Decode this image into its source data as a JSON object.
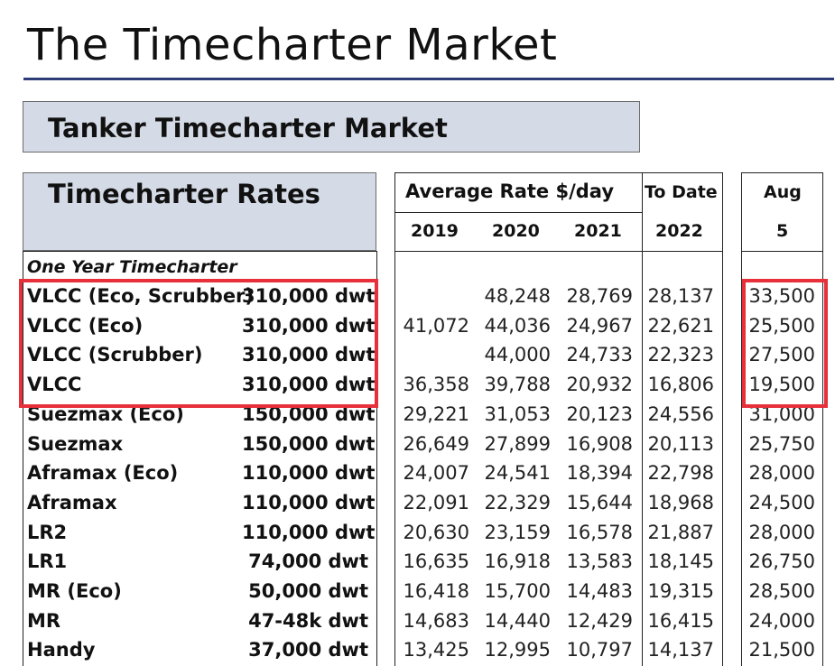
{
  "page": {
    "title": "The Timecharter Market"
  },
  "section": {
    "title": "Tanker Timecharter Market"
  },
  "table": {
    "title": "Timecharter Rates",
    "avg_header": "Average Rate $/day",
    "to_date_header": "To Date",
    "aug_header": "Aug",
    "aug_day": "5",
    "years": [
      "2019",
      "2020",
      "2021"
    ],
    "to_date_year": "2022",
    "subhead": "One Year Timecharter",
    "rows": [
      {
        "name": "VLCC (Eco, Scrubber)",
        "dwt": "310,000 dwt",
        "y2019": "",
        "y2020": "48,248",
        "y2021": "28,769",
        "to_date": "28,137",
        "aug": "33,500"
      },
      {
        "name": "VLCC (Eco)",
        "dwt": "310,000 dwt",
        "y2019": "41,072",
        "y2020": "44,036",
        "y2021": "24,967",
        "to_date": "22,621",
        "aug": "25,500"
      },
      {
        "name": "VLCC (Scrubber)",
        "dwt": "310,000 dwt",
        "y2019": "",
        "y2020": "44,000",
        "y2021": "24,733",
        "to_date": "22,323",
        "aug": "27,500"
      },
      {
        "name": "VLCC",
        "dwt": "310,000 dwt",
        "y2019": "36,358",
        "y2020": "39,788",
        "y2021": "20,932",
        "to_date": "16,806",
        "aug": "19,500"
      },
      {
        "name": "Suezmax (Eco)",
        "dwt": "150,000 dwt",
        "y2019": "29,221",
        "y2020": "31,053",
        "y2021": "20,123",
        "to_date": "24,556",
        "aug": "31,000"
      },
      {
        "name": "Suezmax",
        "dwt": "150,000 dwt",
        "y2019": "26,649",
        "y2020": "27,899",
        "y2021": "16,908",
        "to_date": "20,113",
        "aug": "25,750"
      },
      {
        "name": "Aframax (Eco)",
        "dwt": "110,000 dwt",
        "y2019": "24,007",
        "y2020": "24,541",
        "y2021": "18,394",
        "to_date": "22,798",
        "aug": "28,000"
      },
      {
        "name": "Aframax",
        "dwt": "110,000 dwt",
        "y2019": "22,091",
        "y2020": "22,329",
        "y2021": "15,644",
        "to_date": "18,968",
        "aug": "24,500"
      },
      {
        "name": "LR2",
        "dwt": "110,000 dwt",
        "y2019": "20,630",
        "y2020": "23,159",
        "y2021": "16,578",
        "to_date": "21,887",
        "aug": "28,000"
      },
      {
        "name": "LR1",
        "dwt": "74,000 dwt",
        "y2019": "16,635",
        "y2020": "16,918",
        "y2021": "13,583",
        "to_date": "18,145",
        "aug": "26,750"
      },
      {
        "name": "MR (Eco)",
        "dwt": "50,000 dwt",
        "y2019": "16,418",
        "y2020": "15,700",
        "y2021": "14,483",
        "to_date": "19,315",
        "aug": "28,500"
      },
      {
        "name": "MR",
        "dwt": "47-48k dwt",
        "y2019": "14,683",
        "y2020": "14,440",
        "y2021": "12,429",
        "to_date": "16,415",
        "aug": "24,000"
      },
      {
        "name": "Handy",
        "dwt": "37,000 dwt",
        "y2019": "13,425",
        "y2020": "12,995",
        "y2021": "10,797",
        "to_date": "14,137",
        "aug": "21,500"
      }
    ]
  },
  "colors": {
    "header_fill": "#d5dbe6",
    "title_rule": "#2e3d78",
    "highlight": "#e8303a"
  }
}
